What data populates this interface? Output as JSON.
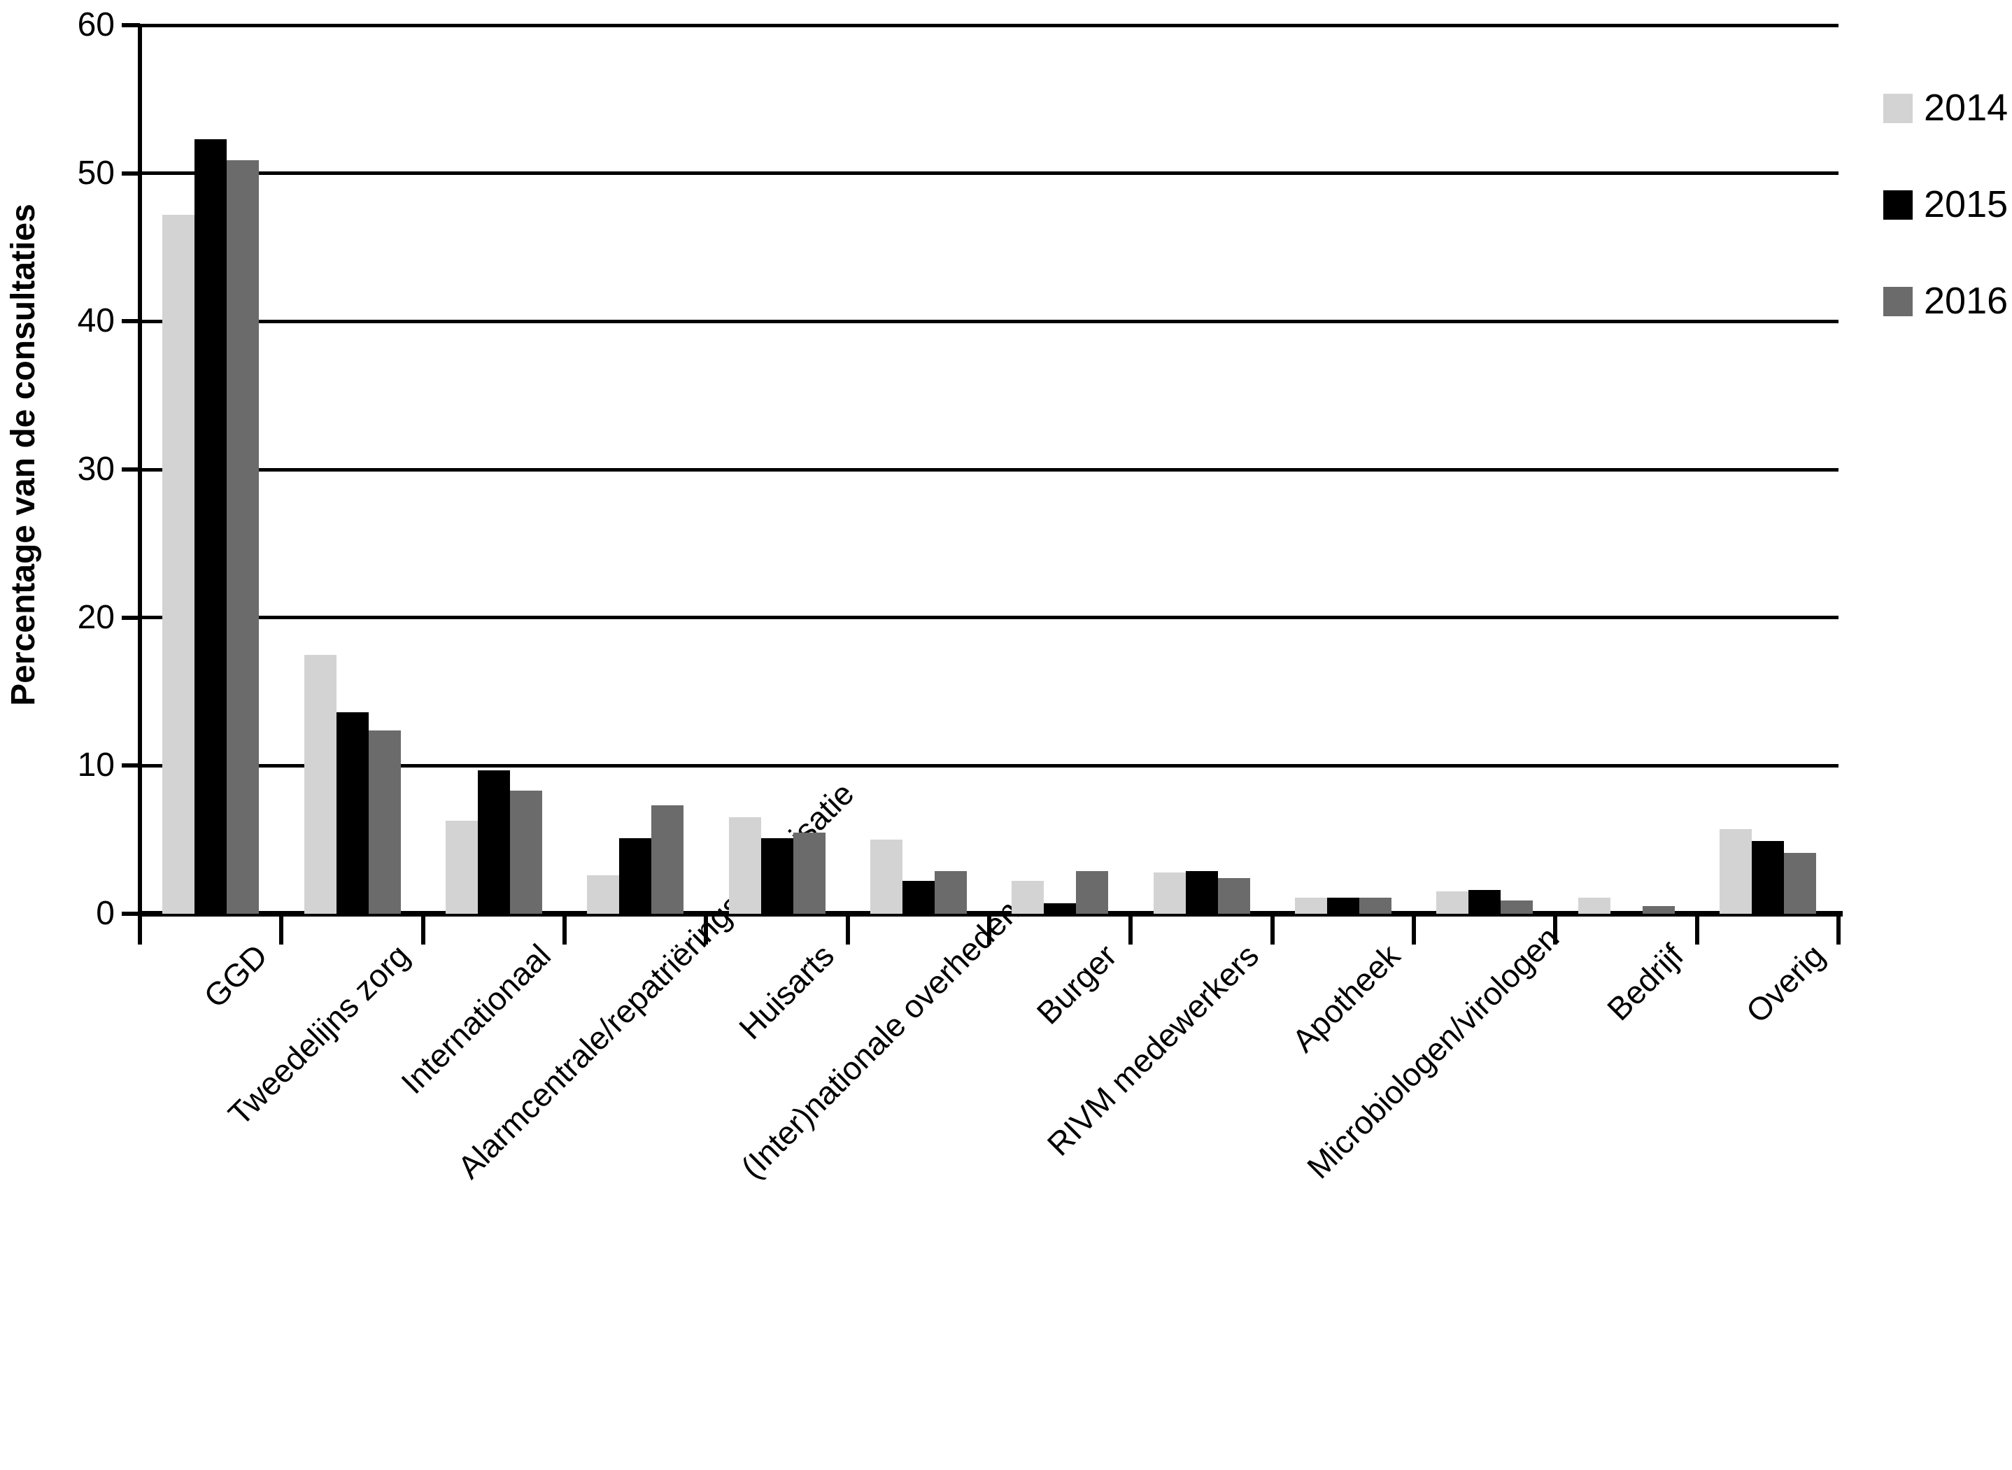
{
  "chart_data": {
    "type": "bar",
    "title": "",
    "xlabel": "",
    "ylabel": "Percentage van de consultaties",
    "ylim": [
      0,
      60
    ],
    "yticks": [
      0,
      10,
      20,
      30,
      40,
      50,
      60
    ],
    "grid": "horizontal",
    "legend_position": "top-right",
    "categories": [
      "GGD",
      "Tweedelijns zorg",
      "Internationaal",
      "Alarmcentrale/repatriëringsorganisatie",
      "Huisarts",
      "(Inter)nationale overheden",
      "Burger",
      "RIVM medewerkers",
      "Apotheek",
      "Microbiologen/virologen",
      "Bedrijf",
      "Overig"
    ],
    "series": [
      {
        "name": "2014",
        "color": "#d3d3d3",
        "values": [
          47.2,
          17.5,
          6.3,
          2.6,
          6.5,
          5.0,
          2.2,
          2.8,
          1.1,
          1.5,
          1.1,
          5.7
        ]
      },
      {
        "name": "2015",
        "color": "#000000",
        "values": [
          52.3,
          13.6,
          9.7,
          5.1,
          5.1,
          2.2,
          0.7,
          2.9,
          1.1,
          1.6,
          0.0,
          4.9
        ]
      },
      {
        "name": "2016",
        "color": "#6b6b6b",
        "values": [
          50.9,
          12.4,
          8.3,
          7.3,
          5.5,
          2.9,
          2.9,
          2.4,
          1.1,
          0.9,
          0.5,
          4.1
        ]
      }
    ]
  },
  "colors": {
    "axis": "#000000",
    "background": "#ffffff"
  }
}
